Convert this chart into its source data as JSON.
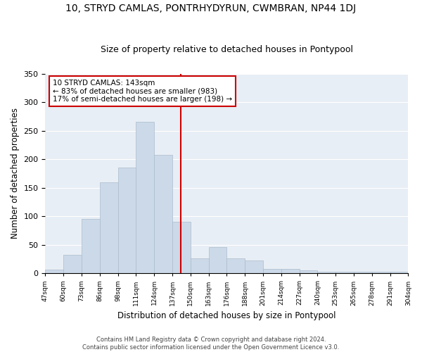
{
  "title": "10, STRYD CAMLAS, PONTRHYDYRUN, CWMBRAN, NP44 1DJ",
  "subtitle": "Size of property relative to detached houses in Pontypool",
  "xlabel": "Distribution of detached houses by size in Pontypool",
  "ylabel": "Number of detached properties",
  "categories": [
    "47sqm",
    "60sqm",
    "73sqm",
    "86sqm",
    "98sqm",
    "111sqm",
    "124sqm",
    "137sqm",
    "150sqm",
    "163sqm",
    "176sqm",
    "188sqm",
    "201sqm",
    "214sqm",
    "227sqm",
    "240sqm",
    "253sqm",
    "265sqm",
    "278sqm",
    "291sqm",
    "304sqm"
  ],
  "bar_heights": [
    6,
    33,
    95,
    160,
    185,
    265,
    207,
    90,
    26,
    46,
    26,
    22,
    8,
    8,
    5,
    3,
    3,
    3,
    3,
    3
  ],
  "bar_color": "#ccd9e8",
  "bar_edge_color": "#aabccc",
  "vline_color": "#cc0000",
  "annotation_text": "10 STRYD CAMLAS: 143sqm\n← 83% of detached houses are smaller (983)\n17% of semi-detached houses are larger (198) →",
  "annotation_box_color": "#ffffff",
  "annotation_box_edge": "#cc0000",
  "ylim": [
    0,
    350
  ],
  "yticks": [
    0,
    50,
    100,
    150,
    200,
    250,
    300,
    350
  ],
  "background_color": "#e8eef5",
  "footer": "Contains HM Land Registry data © Crown copyright and database right 2024.\nContains public sector information licensed under the Open Government Licence v3.0.",
  "title_fontsize": 10,
  "subtitle_fontsize": 9,
  "xlabel_fontsize": 8.5,
  "ylabel_fontsize": 8.5
}
